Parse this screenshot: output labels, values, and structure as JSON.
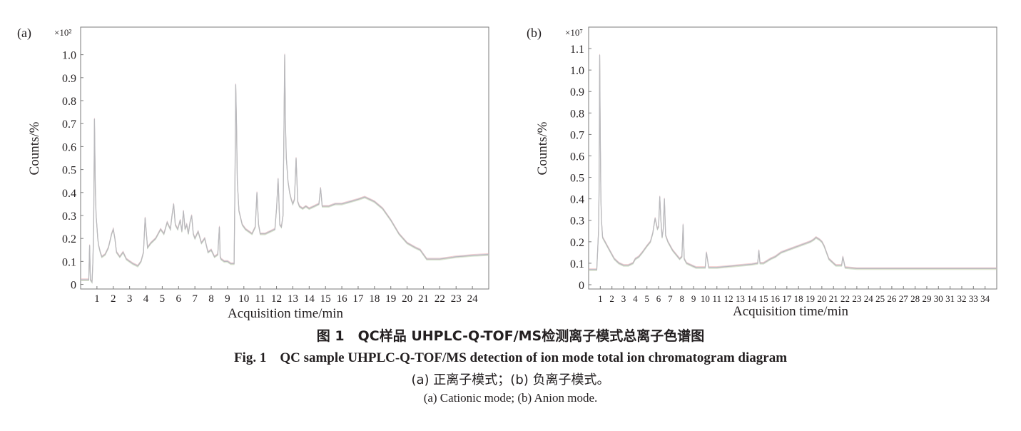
{
  "figure": {
    "caption_cn": "图 1　QC样品 UHPLC-Q-TOF/MS检测离子模式总离子色谱图",
    "caption_en": "Fig. 1　QC sample UHPLC-Q-TOF/MS detection of ion mode total ion chromatogram diagram",
    "note_cn": "(a) 正离子模式；(b) 负离子模式。",
    "note_en": "(a) Cationic mode; (b) Anion mode."
  },
  "colors": {
    "trace": "#b9b9bd",
    "trace_alt": [
      "#e7a6a6",
      "#a7b3de",
      "#ecc79f",
      "#b8d3b0"
    ],
    "axis": "#7b7b7b"
  },
  "chart_data": [
    {
      "panel": "(a)",
      "type": "line",
      "multiplier": "×10²",
      "xlabel": "Acquisition time/min",
      "ylabel": "Counts/%",
      "xlim": [
        0,
        25
      ],
      "ylim": [
        -0.02,
        1.12
      ],
      "xticks": [
        "1",
        "2",
        "3",
        "4",
        "5",
        "6",
        "7",
        "8",
        "9",
        "10",
        "11",
        "12",
        "13",
        "14",
        "15",
        "16",
        "17",
        "18",
        "19",
        "20",
        "21",
        "22",
        "23",
        "24"
      ],
      "yticks": [
        "0",
        "0.1",
        "0.2",
        "0.3",
        "0.4",
        "0.5",
        "0.6",
        "0.7",
        "0.8",
        "0.9",
        "1.0"
      ],
      "series": [
        {
          "x": [
            0,
            0.3,
            0.5,
            0.55,
            0.6,
            0.7,
            0.75,
            0.8,
            0.85,
            0.9,
            0.95,
            1.0,
            1.05,
            1.1,
            1.2,
            1.3,
            1.5,
            1.7,
            1.9,
            2.0,
            2.1,
            2.2,
            2.4,
            2.6,
            2.8,
            3.0,
            3.2,
            3.5,
            3.7,
            3.85,
            3.95,
            4.1,
            4.3,
            4.6,
            4.9,
            5.1,
            5.3,
            5.5,
            5.6,
            5.7,
            5.8,
            5.95,
            6.1,
            6.2,
            6.3,
            6.4,
            6.5,
            6.6,
            6.7,
            6.8,
            6.9,
            7.0,
            7.2,
            7.4,
            7.6,
            7.8,
            8.0,
            8.2,
            8.4,
            8.5,
            8.55,
            8.6,
            8.8,
            9.0,
            9.2,
            9.4,
            9.45,
            9.5,
            9.55,
            9.6,
            9.7,
            9.9,
            10.1,
            10.3,
            10.5,
            10.7,
            10.8,
            10.9,
            11.0,
            11.3,
            11.6,
            11.9,
            12.0,
            12.1,
            12.2,
            12.3,
            12.4,
            12.45,
            12.5,
            12.55,
            12.6,
            12.7,
            12.8,
            12.9,
            13.0,
            13.1,
            13.2,
            13.3,
            13.4,
            13.6,
            13.8,
            14.0,
            14.3,
            14.6,
            14.7,
            14.8,
            15.2,
            15.6,
            16.0,
            16.5,
            17.0,
            17.4,
            17.7,
            18.0,
            18.5,
            19.0,
            19.5,
            20.0,
            20.5,
            20.8,
            21.0,
            21.2,
            21.6,
            22.0,
            22.5,
            23.0,
            23.5,
            24.0,
            24.5,
            25.0
          ],
          "y": [
            0.02,
            0.02,
            0.02,
            0.17,
            0.02,
            0.01,
            0.1,
            0.25,
            0.72,
            0.42,
            0.3,
            0.25,
            0.2,
            0.17,
            0.14,
            0.12,
            0.13,
            0.16,
            0.22,
            0.24,
            0.2,
            0.14,
            0.12,
            0.14,
            0.11,
            0.1,
            0.09,
            0.08,
            0.1,
            0.14,
            0.29,
            0.16,
            0.18,
            0.2,
            0.24,
            0.22,
            0.27,
            0.24,
            0.3,
            0.35,
            0.26,
            0.24,
            0.28,
            0.23,
            0.32,
            0.24,
            0.26,
            0.22,
            0.27,
            0.3,
            0.22,
            0.2,
            0.23,
            0.18,
            0.2,
            0.14,
            0.15,
            0.12,
            0.13,
            0.25,
            0.12,
            0.11,
            0.1,
            0.1,
            0.09,
            0.09,
            0.4,
            0.87,
            0.7,
            0.45,
            0.32,
            0.26,
            0.24,
            0.23,
            0.22,
            0.25,
            0.4,
            0.26,
            0.22,
            0.22,
            0.23,
            0.24,
            0.33,
            0.46,
            0.26,
            0.25,
            0.3,
            0.65,
            1.0,
            0.7,
            0.55,
            0.45,
            0.4,
            0.37,
            0.35,
            0.37,
            0.55,
            0.36,
            0.34,
            0.33,
            0.34,
            0.33,
            0.34,
            0.35,
            0.42,
            0.34,
            0.34,
            0.35,
            0.35,
            0.36,
            0.37,
            0.38,
            0.37,
            0.36,
            0.33,
            0.28,
            0.22,
            0.18,
            0.16,
            0.15,
            0.13,
            0.11,
            0.11,
            0.11,
            0.115,
            0.12,
            0.123,
            0.126,
            0.128,
            0.13
          ]
        }
      ]
    },
    {
      "panel": "(b)",
      "type": "line",
      "multiplier": "×10⁷",
      "xlabel": "Acquisition time/min",
      "ylabel": "Counts/%",
      "xlim": [
        0,
        35
      ],
      "ylim": [
        -0.02,
        1.2
      ],
      "xticks": [
        "1",
        "2",
        "3",
        "4",
        "5",
        "6",
        "7",
        "8",
        "9",
        "10",
        "11",
        "12",
        "13",
        "14",
        "15",
        "16",
        "17",
        "18",
        "19",
        "20",
        "21",
        "22",
        "23",
        "24",
        "25",
        "26",
        "27",
        "28",
        "29",
        "30",
        "31",
        "32",
        "33",
        "34"
      ],
      "yticks": [
        "0",
        "0.1",
        "0.2",
        "0.3",
        "0.4",
        "0.5",
        "0.6",
        "0.7",
        "0.8",
        "0.9",
        "1.0",
        "1.1"
      ],
      "series": [
        {
          "x": [
            0,
            0.7,
            0.85,
            0.9,
            0.95,
            1.0,
            1.05,
            1.1,
            1.2,
            1.4,
            1.6,
            1.8,
            2.0,
            2.2,
            2.4,
            2.6,
            3.0,
            3.4,
            3.8,
            4.0,
            4.3,
            4.6,
            5.0,
            5.3,
            5.5,
            5.7,
            5.9,
            6.0,
            6.1,
            6.2,
            6.3,
            6.4,
            6.5,
            6.6,
            6.8,
            7.0,
            7.2,
            7.5,
            7.8,
            8.0,
            8.1,
            8.2,
            8.4,
            8.8,
            9.0,
            9.2,
            9.4,
            9.6,
            9.8,
            10.0,
            10.1,
            10.3,
            10.6,
            11.0,
            12.0,
            13.0,
            14.0,
            14.5,
            14.6,
            14.7,
            15.0,
            15.6,
            16.0,
            16.5,
            17.0,
            17.5,
            18.0,
            18.5,
            19.0,
            19.3,
            19.5,
            19.8,
            20.0,
            20.2,
            20.4,
            20.6,
            20.8,
            21.0,
            21.2,
            21.5,
            21.7,
            21.8,
            22.0,
            23.0,
            24.0,
            26.0,
            28.0,
            30.0,
            32.0,
            34.0,
            35.0
          ],
          "y": [
            0.07,
            0.07,
            0.25,
            0.45,
            1.07,
            0.7,
            0.4,
            0.3,
            0.22,
            0.2,
            0.18,
            0.16,
            0.14,
            0.12,
            0.11,
            0.1,
            0.09,
            0.09,
            0.1,
            0.12,
            0.13,
            0.15,
            0.18,
            0.2,
            0.24,
            0.31,
            0.26,
            0.27,
            0.41,
            0.3,
            0.22,
            0.26,
            0.4,
            0.23,
            0.2,
            0.18,
            0.16,
            0.14,
            0.12,
            0.13,
            0.28,
            0.12,
            0.1,
            0.09,
            0.085,
            0.08,
            0.08,
            0.08,
            0.08,
            0.08,
            0.15,
            0.08,
            0.08,
            0.08,
            0.085,
            0.09,
            0.095,
            0.1,
            0.16,
            0.1,
            0.1,
            0.12,
            0.13,
            0.15,
            0.16,
            0.17,
            0.18,
            0.19,
            0.2,
            0.21,
            0.22,
            0.21,
            0.2,
            0.18,
            0.15,
            0.12,
            0.11,
            0.1,
            0.09,
            0.09,
            0.09,
            0.13,
            0.08,
            0.075,
            0.075,
            0.075,
            0.075,
            0.075,
            0.075,
            0.075,
            0.075
          ]
        }
      ]
    }
  ]
}
